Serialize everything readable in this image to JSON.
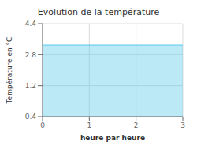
{
  "chart_data": {
    "type": "area",
    "title": "Evolution de la température",
    "xlabel": "heure par heure",
    "ylabel": "Température en °C",
    "x": [
      0,
      3
    ],
    "values": [
      3.3,
      3.3
    ],
    "color": "#55c8e8",
    "xlim": [
      0,
      3
    ],
    "ylim": [
      -0.4,
      4.4
    ],
    "xticks": [
      0,
      1,
      2,
      3
    ],
    "yticks": [
      -0.4,
      1.2,
      2.8,
      4.4
    ],
    "grid": true
  }
}
